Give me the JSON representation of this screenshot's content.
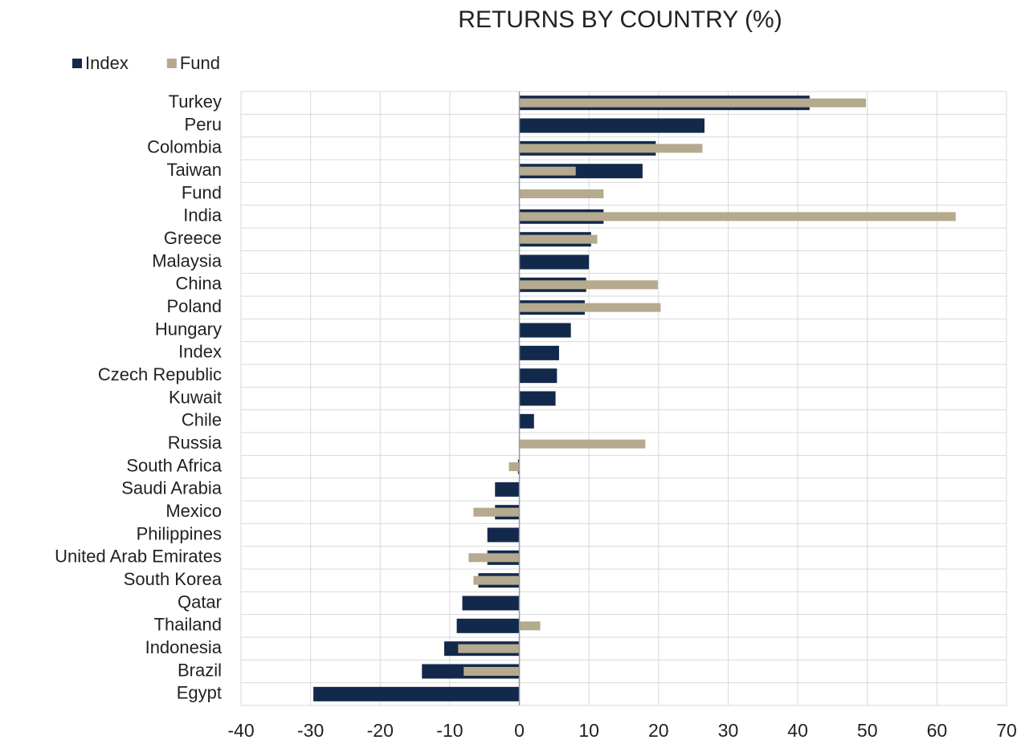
{
  "chart_data": {
    "type": "bar",
    "orientation": "horizontal",
    "title": "RETURNS BY COUNTRY (%)",
    "categories": [
      "Turkey",
      "Peru",
      "Colombia",
      "Taiwan",
      "Fund",
      "India",
      "Greece",
      "Malaysia",
      "China",
      "Poland",
      "Hungary",
      "Index",
      "Czech Republic",
      "Kuwait",
      "Chile",
      "Russia",
      "South Africa",
      "Saudi Arabia",
      "Mexico",
      "Philippines",
      "United Arab Emirates",
      "South Korea",
      "Qatar",
      "Thailand",
      "Indonesia",
      "Brazil",
      "Egypt"
    ],
    "series": [
      {
        "name": "Index",
        "color": "#13294b",
        "values": [
          41.7,
          26.6,
          19.6,
          17.7,
          null,
          12.1,
          10.3,
          10.0,
          9.6,
          9.4,
          7.4,
          5.7,
          5.4,
          5.2,
          2.1,
          null,
          -0.2,
          -3.5,
          -3.5,
          -4.6,
          -4.6,
          -5.9,
          -8.2,
          -9.0,
          -10.8,
          -14.0,
          -29.6
        ]
      },
      {
        "name": "Fund",
        "color": "#b5aa8e",
        "values": [
          49.8,
          null,
          26.3,
          8.1,
          12.1,
          62.7,
          11.2,
          null,
          19.9,
          20.3,
          null,
          null,
          null,
          null,
          null,
          18.1,
          -1.5,
          null,
          -6.6,
          null,
          -7.3,
          -6.6,
          null,
          3.0,
          -8.8,
          -8.0,
          null
        ]
      }
    ],
    "xlim": [
      -40,
      70
    ],
    "xticks": [
      -40,
      -30,
      -20,
      -10,
      0,
      10,
      20,
      30,
      40,
      50,
      60,
      70
    ],
    "grid": true,
    "legend": "top-left"
  }
}
